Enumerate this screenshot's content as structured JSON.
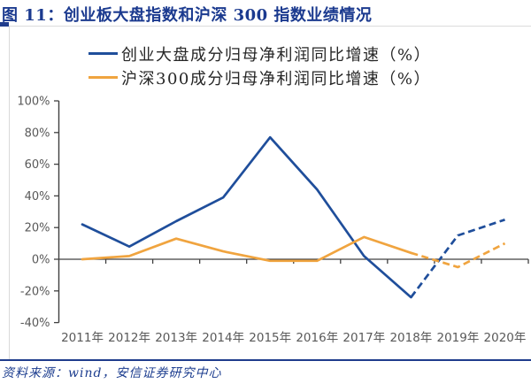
{
  "title": "图 11：创业板大盘指数和沪深 300 指数业绩情况",
  "legend": {
    "items": [
      {
        "label": "创业大盘成分归母净利润同比增速（%）",
        "color": "#1f4e9b"
      },
      {
        "label": "沪深300成分归母净利润同比增速（%）",
        "color": "#f0a43f"
      }
    ]
  },
  "footer": {
    "source": "资料来源：wind，安信证券研究中心"
  },
  "colors": {
    "accent_navy": "#1f3c8c",
    "title_navy": "#1b3a8f",
    "axis": "#404040",
    "axis_label": "#595959",
    "series_blue": "#1f4e9b",
    "series_orange": "#f0a43f",
    "box_border": "#d9d9d9"
  },
  "chart_data": {
    "type": "line",
    "title": "创业板大盘指数和沪深300指数业绩情况",
    "categories": [
      "2011年",
      "2012年",
      "2013年",
      "2014年",
      "2015年",
      "2016年",
      "2017年",
      "2018年",
      "2019年",
      "2020年"
    ],
    "series": [
      {
        "name": "创业大盘成分归母净利润同比增速（%）",
        "color": "#1f4e9b",
        "values": [
          22,
          8,
          24,
          39,
          77,
          44,
          2,
          -24,
          15,
          25
        ],
        "dashed_from_index": 7
      },
      {
        "name": "沪深300成分归母净利润同比增速（%）",
        "color": "#f0a43f",
        "values": [
          0,
          2,
          13,
          5,
          -1,
          -1,
          14,
          4,
          -5,
          10
        ],
        "dashed_from_index": 7
      }
    ],
    "ylim": [
      -40,
      100
    ],
    "ytick_step": 20,
    "ytick_labels": [
      "100%",
      "80%",
      "60%",
      "40%",
      "20%",
      "0%",
      "-20%",
      "-40%"
    ],
    "ytick_values": [
      100,
      80,
      60,
      40,
      20,
      0,
      -20,
      -40
    ],
    "grid": "zero-line-only",
    "legend_position": "top",
    "dashed_note": "2019-2020 segments are forecast (dashed)"
  }
}
